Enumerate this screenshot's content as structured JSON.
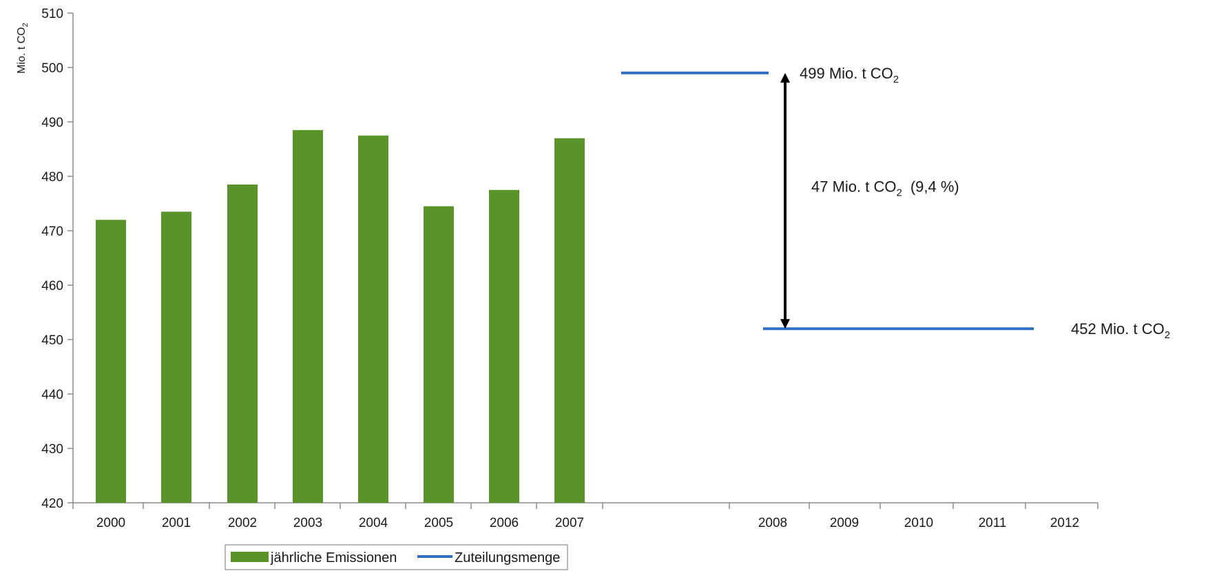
{
  "chart_data": {
    "type": "bar",
    "ylabel_main": "Mio. t CO",
    "ylabel_sub": "2",
    "ylim": [
      420,
      510
    ],
    "yticks": [
      420,
      430,
      440,
      450,
      460,
      470,
      480,
      490,
      500,
      510
    ],
    "grid": false,
    "categories": [
      "2000",
      "2001",
      "2002",
      "2003",
      "2004",
      "2005",
      "2006",
      "2007",
      "2008",
      "2009",
      "2010",
      "2011",
      "2012"
    ],
    "series": [
      {
        "name": "jährliche Emissionen",
        "type": "bar",
        "color": "#5a9329",
        "x": [
          "2000",
          "2001",
          "2002",
          "2003",
          "2004",
          "2005",
          "2006",
          "2007"
        ],
        "values": [
          472,
          473.5,
          478.5,
          488.5,
          487.5,
          474.5,
          477.5,
          487
        ]
      },
      {
        "name": "Zuteilungsmenge",
        "type": "line",
        "color": "#2f6fc4",
        "segments": [
          {
            "from": "2007",
            "to": "2008",
            "value": 499
          },
          {
            "from": "2008",
            "to": "2012",
            "value": 452
          }
        ]
      }
    ],
    "annotations": [
      {
        "id": "top",
        "text_main": "499 Mio. t CO",
        "text_sub": "2",
        "value": 499
      },
      {
        "id": "diff",
        "text_main": "47 Mio. t CO",
        "text_sub": "2",
        "text_tail": "(9,4 %)",
        "from": 499,
        "to": 452
      },
      {
        "id": "bottom",
        "text_main": "452 Mio. t CO",
        "text_sub": "2",
        "value": 452
      }
    ],
    "legend": {
      "position": "bottom",
      "items": [
        {
          "label": "jährliche Emissionen",
          "color": "#5a9329",
          "kind": "bar"
        },
        {
          "label": "Zuteilungsmenge",
          "color": "#2f6fc4",
          "kind": "line"
        }
      ]
    }
  }
}
